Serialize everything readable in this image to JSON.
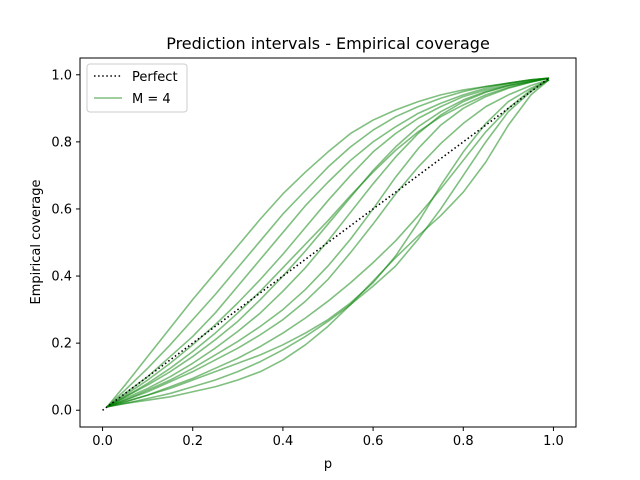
{
  "chart_data": {
    "type": "line",
    "title": "Prediction intervals - Empirical coverage",
    "xlabel": "p",
    "ylabel": "Empirical coverage",
    "xlim": [
      -0.05,
      1.05
    ],
    "ylim": [
      -0.05,
      1.05
    ],
    "xticks": [
      0.0,
      0.2,
      0.4,
      0.6,
      0.8,
      1.0
    ],
    "yticks": [
      0.0,
      0.2,
      0.4,
      0.6,
      0.8,
      1.0
    ],
    "xtick_labels": [
      "0.0",
      "0.2",
      "0.4",
      "0.6",
      "0.8",
      "1.0"
    ],
    "ytick_labels": [
      "0.0",
      "0.2",
      "0.4",
      "0.6",
      "0.8",
      "1.0"
    ],
    "grid": false,
    "legend": {
      "placement": "top-left",
      "entries": [
        {
          "label": "Perfect",
          "color": "#000000",
          "style": "dotted"
        },
        {
          "label": "M = 4",
          "color": "#008000",
          "style": "solid"
        }
      ]
    },
    "perfect": {
      "label": "Perfect",
      "x": [
        0.0,
        0.99
      ],
      "y": [
        0.0,
        0.99
      ],
      "color": "#000000"
    },
    "series_color": "#008000",
    "series_opacity": 0.5,
    "x": [
      0.01,
      0.05,
      0.1,
      0.15,
      0.2,
      0.25,
      0.3,
      0.35,
      0.4,
      0.45,
      0.5,
      0.55,
      0.6,
      0.65,
      0.7,
      0.75,
      0.8,
      0.85,
      0.9,
      0.95,
      0.99
    ],
    "series": [
      {
        "values": [
          0.01,
          0.075,
          0.16,
          0.245,
          0.33,
          0.41,
          0.49,
          0.57,
          0.645,
          0.71,
          0.77,
          0.825,
          0.865,
          0.895,
          0.92,
          0.94,
          0.955,
          0.965,
          0.975,
          0.985,
          0.99
        ]
      },
      {
        "values": [
          0.01,
          0.06,
          0.125,
          0.195,
          0.27,
          0.345,
          0.425,
          0.505,
          0.585,
          0.655,
          0.725,
          0.785,
          0.835,
          0.875,
          0.905,
          0.93,
          0.95,
          0.965,
          0.975,
          0.985,
          0.99
        ]
      },
      {
        "values": [
          0.01,
          0.05,
          0.1,
          0.16,
          0.22,
          0.29,
          0.37,
          0.45,
          0.53,
          0.61,
          0.68,
          0.745,
          0.8,
          0.845,
          0.885,
          0.915,
          0.94,
          0.96,
          0.975,
          0.985,
          0.99
        ]
      },
      {
        "values": [
          0.01,
          0.045,
          0.09,
          0.14,
          0.195,
          0.255,
          0.32,
          0.39,
          0.465,
          0.545,
          0.625,
          0.7,
          0.77,
          0.825,
          0.87,
          0.905,
          0.935,
          0.955,
          0.97,
          0.982,
          0.99
        ]
      },
      {
        "values": [
          0.01,
          0.04,
          0.08,
          0.125,
          0.175,
          0.23,
          0.29,
          0.355,
          0.425,
          0.495,
          0.565,
          0.64,
          0.71,
          0.775,
          0.83,
          0.875,
          0.91,
          0.94,
          0.962,
          0.978,
          0.99
        ]
      },
      {
        "values": [
          0.01,
          0.04,
          0.075,
          0.115,
          0.16,
          0.21,
          0.265,
          0.33,
          0.4,
          0.475,
          0.555,
          0.635,
          0.715,
          0.785,
          0.845,
          0.89,
          0.925,
          0.95,
          0.968,
          0.98,
          0.99
        ]
      },
      {
        "values": [
          0.01,
          0.035,
          0.065,
          0.1,
          0.14,
          0.185,
          0.235,
          0.29,
          0.355,
          0.425,
          0.505,
          0.59,
          0.675,
          0.755,
          0.825,
          0.88,
          0.92,
          0.948,
          0.967,
          0.98,
          0.99
        ]
      },
      {
        "values": [
          0.01,
          0.03,
          0.06,
          0.09,
          0.125,
          0.165,
          0.205,
          0.25,
          0.3,
          0.36,
          0.43,
          0.51,
          0.6,
          0.695,
          0.78,
          0.85,
          0.9,
          0.935,
          0.96,
          0.978,
          0.99
        ]
      },
      {
        "values": [
          0.01,
          0.03,
          0.055,
          0.085,
          0.115,
          0.15,
          0.185,
          0.225,
          0.27,
          0.325,
          0.39,
          0.47,
          0.555,
          0.645,
          0.725,
          0.795,
          0.855,
          0.905,
          0.94,
          0.968,
          0.985
        ]
      },
      {
        "values": [
          0.01,
          0.025,
          0.045,
          0.07,
          0.095,
          0.125,
          0.155,
          0.19,
          0.23,
          0.275,
          0.325,
          0.38,
          0.44,
          0.505,
          0.58,
          0.66,
          0.745,
          0.83,
          0.9,
          0.955,
          0.985
        ]
      },
      {
        "values": [
          0.01,
          0.025,
          0.045,
          0.065,
          0.09,
          0.115,
          0.14,
          0.165,
          0.195,
          0.23,
          0.27,
          0.32,
          0.38,
          0.46,
          0.56,
          0.67,
          0.77,
          0.855,
          0.92,
          0.96,
          0.985
        ]
      },
      {
        "values": [
          0.01,
          0.02,
          0.035,
          0.05,
          0.07,
          0.09,
          0.115,
          0.145,
          0.18,
          0.22,
          0.265,
          0.315,
          0.37,
          0.43,
          0.51,
          0.6,
          0.7,
          0.8,
          0.89,
          0.95,
          0.985
        ]
      },
      {
        "values": [
          0.01,
          0.02,
          0.03,
          0.04,
          0.055,
          0.07,
          0.09,
          0.115,
          0.15,
          0.195,
          0.25,
          0.315,
          0.385,
          0.455,
          0.52,
          0.58,
          0.65,
          0.74,
          0.85,
          0.94,
          0.985
        ]
      }
    ]
  }
}
